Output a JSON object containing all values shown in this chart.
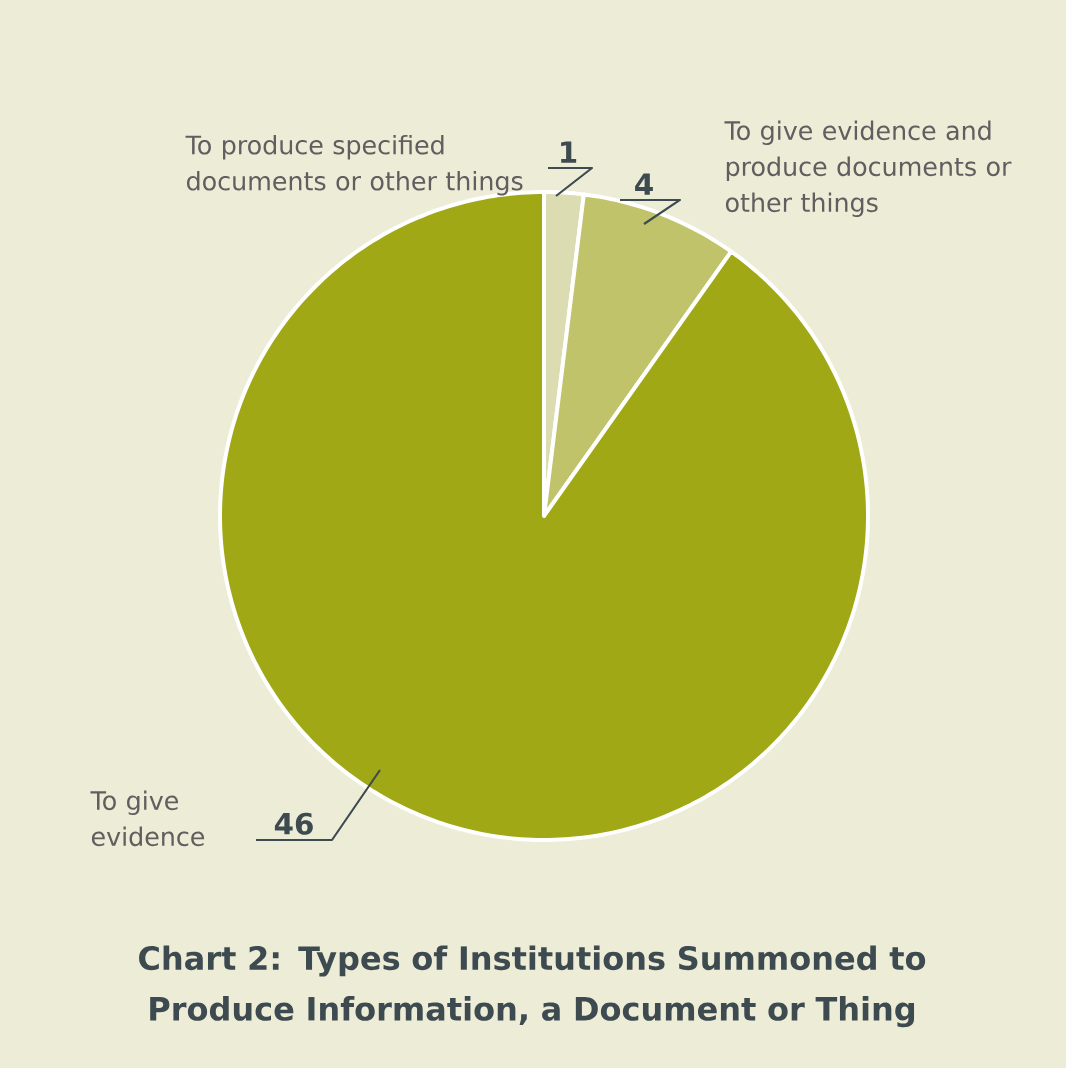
{
  "chart_data": {
    "type": "pie",
    "title": "Chart 2: Types of Institutions Summoned to Produce Information, a Document or Thing",
    "categories": [
      "To produce specified documents or other things",
      "To give evidence and produce documents or other things",
      "To give evidence"
    ],
    "values": [
      1,
      4,
      46
    ],
    "colors": [
      "#dcdcb2",
      "#c0c36a",
      "#a0a816"
    ],
    "data_labels": true
  }
}
